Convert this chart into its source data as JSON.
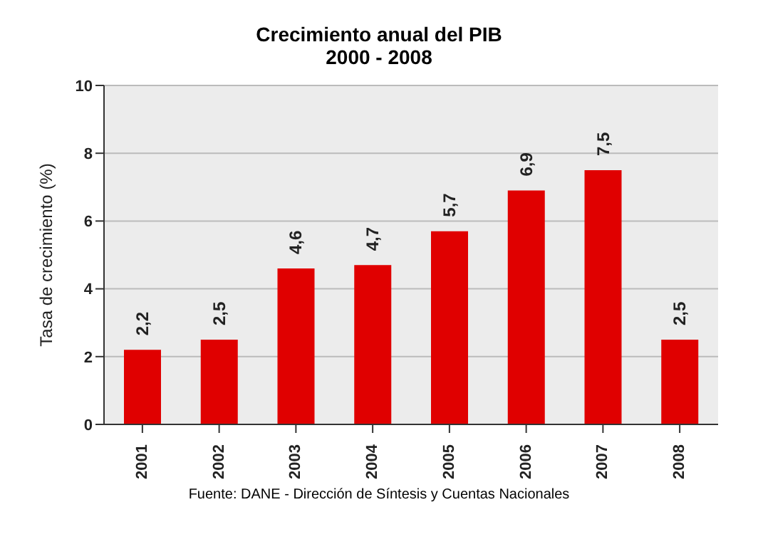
{
  "chart_data": {
    "type": "bar",
    "title": "Crecimiento anual del PIB",
    "subtitle": "2000 - 2008",
    "ylabel": "Tasa de crecimiento (%)",
    "categories": [
      "2001",
      "2002",
      "2003",
      "2004",
      "2005",
      "2006",
      "2007",
      "2008"
    ],
    "values": [
      2.2,
      2.5,
      4.6,
      4.7,
      5.7,
      6.9,
      7.5,
      2.5
    ],
    "color": "#e00000",
    "ylim": [
      0,
      10
    ],
    "yticks": [
      0,
      2,
      4,
      6,
      8,
      10
    ],
    "grid": "y",
    "value_labels": [
      "2,2",
      "2,5",
      "4,6",
      "4,7",
      "5,7",
      "6,9",
      "7,5",
      "2,5"
    ],
    "annotations": [
      "Fuente: DANE - Dirección de Síntesis y Cuentas Nacionales"
    ]
  }
}
